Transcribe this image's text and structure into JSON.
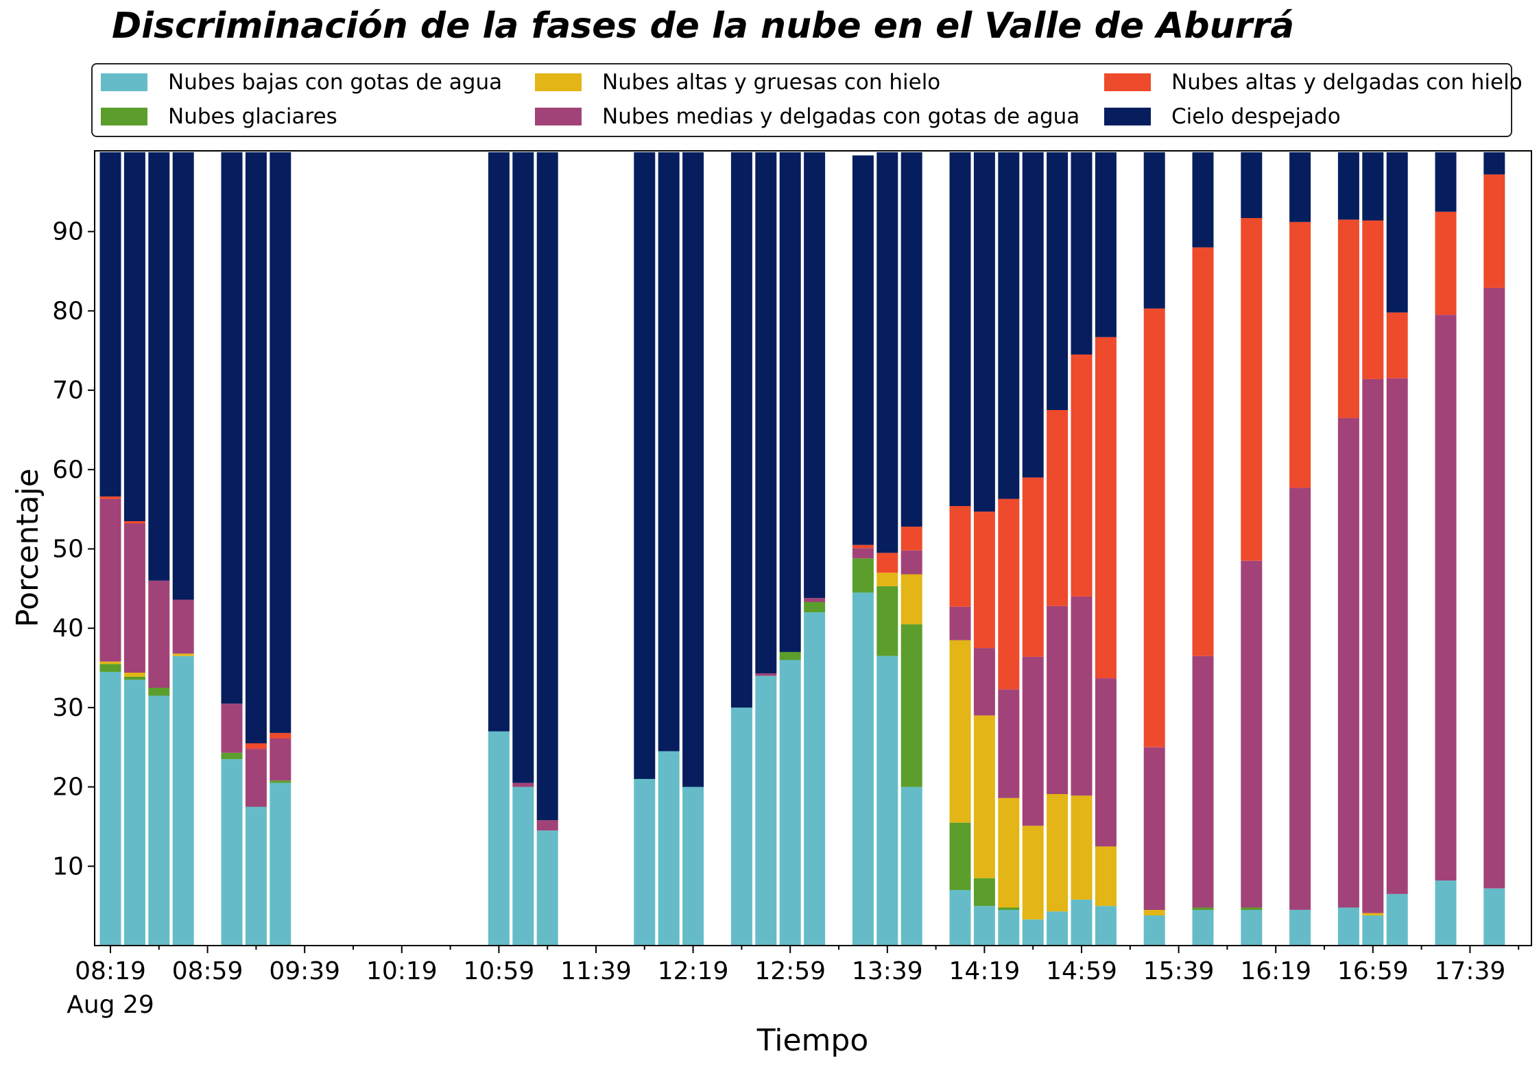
{
  "chart_data": {
    "type": "bar",
    "stacked": true,
    "title": "Discriminación de la fases de la nube en el Valle de Aburrá",
    "xlabel": "Tiempo",
    "ylabel": "Porcentaje",
    "ylim": [
      0,
      100
    ],
    "yticks": [
      10,
      20,
      30,
      40,
      50,
      60,
      70,
      80,
      90
    ],
    "x_start": "08:19",
    "x_step_minutes": 10,
    "x_count": 60,
    "xtick_labels": [
      "08:19",
      "08:59",
      "09:39",
      "10:19",
      "10:59",
      "11:39",
      "12:19",
      "12:59",
      "13:39",
      "14:19",
      "14:59",
      "15:39",
      "16:19",
      "16:59",
      "17:39"
    ],
    "xtick_sublabel": "Aug 29",
    "grid": false,
    "legend_position": "top",
    "series": [
      {
        "name": "Nubes bajas con gotas de agua",
        "color": "#65BCC8",
        "values": [
          34.5,
          33.5,
          31.5,
          36.5,
          null,
          23.5,
          17.5,
          20.5,
          null,
          null,
          null,
          null,
          null,
          null,
          null,
          null,
          27,
          20,
          14.5,
          null,
          null,
          null,
          21,
          24.5,
          20,
          null,
          30,
          34,
          36,
          42,
          null,
          44.5,
          36.5,
          20,
          null,
          7,
          5,
          4.5,
          3.3,
          4.3,
          5.8,
          5,
          null,
          3.8,
          null,
          4.5,
          null,
          4.5,
          null,
          4.5,
          null,
          4.8,
          3.8,
          6.5,
          null,
          8.2,
          null,
          7.2,
          null,
          null
        ]
      },
      {
        "name": "Nubes glaciares",
        "color": "#5B9E2C",
        "values": [
          1,
          0.4,
          1,
          0,
          null,
          0.8,
          0,
          0.3,
          null,
          null,
          null,
          null,
          null,
          null,
          null,
          null,
          0,
          0,
          0,
          null,
          null,
          null,
          0,
          0,
          0,
          null,
          0,
          0,
          1,
          1.3,
          null,
          4.3,
          8.8,
          20.5,
          null,
          8.5,
          3.5,
          0.3,
          0,
          0,
          0,
          0,
          null,
          0,
          null,
          0.3,
          null,
          0.3,
          null,
          0,
          null,
          0,
          0,
          0,
          null,
          0,
          null,
          0,
          null,
          null
        ]
      },
      {
        "name": "Nubes altas y gruesas con hielo",
        "color": "#E3B516",
        "values": [
          0.3,
          0.5,
          0,
          0.3,
          null,
          0,
          0,
          0,
          null,
          null,
          null,
          null,
          null,
          null,
          null,
          null,
          0,
          0,
          0,
          null,
          null,
          null,
          0,
          0,
          0,
          null,
          0,
          0,
          0,
          0,
          null,
          0,
          1.7,
          6.3,
          null,
          23,
          20.5,
          13.8,
          11.8,
          14.8,
          13.1,
          7.5,
          null,
          0.7,
          null,
          0,
          null,
          0,
          null,
          0,
          null,
          0,
          0.3,
          0,
          null,
          0,
          null,
          0,
          null,
          null
        ]
      },
      {
        "name": "Nubes medias y delgadas con gotas de agua",
        "color": "#A14378",
        "values": [
          20.5,
          18.8,
          13.5,
          6.8,
          null,
          6.2,
          7.3,
          5.3,
          null,
          null,
          null,
          null,
          null,
          null,
          null,
          null,
          0,
          0.5,
          1.3,
          null,
          null,
          null,
          0,
          0,
          0,
          null,
          0,
          0.3,
          0,
          0.5,
          null,
          1.3,
          0,
          3,
          null,
          4.2,
          8.5,
          13.7,
          21.3,
          23.7,
          25.1,
          21.2,
          null,
          20.5,
          null,
          31.7,
          null,
          43.7,
          null,
          53.2,
          null,
          61.7,
          67.3,
          65,
          null,
          71.3,
          null,
          75.7,
          null,
          null
        ]
      },
      {
        "name": "Nubes altas y delgadas con hielo",
        "color": "#EE4A2C",
        "values": [
          0.3,
          0.3,
          0,
          0,
          null,
          0,
          0.7,
          0.7,
          null,
          null,
          null,
          null,
          null,
          null,
          null,
          null,
          0,
          0,
          0,
          null,
          null,
          null,
          0,
          0,
          0,
          null,
          0,
          0,
          0,
          0,
          null,
          0.4,
          2.5,
          3,
          null,
          12.7,
          17.2,
          24,
          22.6,
          24.7,
          30.5,
          43,
          null,
          55.3,
          null,
          51.5,
          null,
          43.2,
          null,
          33.5,
          null,
          25,
          20,
          8.3,
          null,
          13,
          null,
          14.3,
          null,
          null
        ]
      },
      {
        "name": "Cielo despejado",
        "color": "#061E5E",
        "values": [
          43.4,
          46.5,
          54,
          56.4,
          null,
          69.5,
          74.5,
          73.2,
          null,
          null,
          null,
          null,
          null,
          null,
          null,
          null,
          73,
          79.5,
          84.2,
          null,
          null,
          null,
          79,
          75.5,
          80,
          null,
          70,
          65.7,
          63,
          56.2,
          null,
          49.1,
          50.5,
          47.2,
          null,
          44.6,
          45.3,
          43.7,
          41,
          32.5,
          25.5,
          23.3,
          null,
          19.7,
          null,
          12,
          null,
          8.3,
          null,
          8.8,
          null,
          8.5,
          8.6,
          20.2,
          null,
          7.5,
          null,
          3.1,
          null,
          null
        ]
      }
    ]
  }
}
